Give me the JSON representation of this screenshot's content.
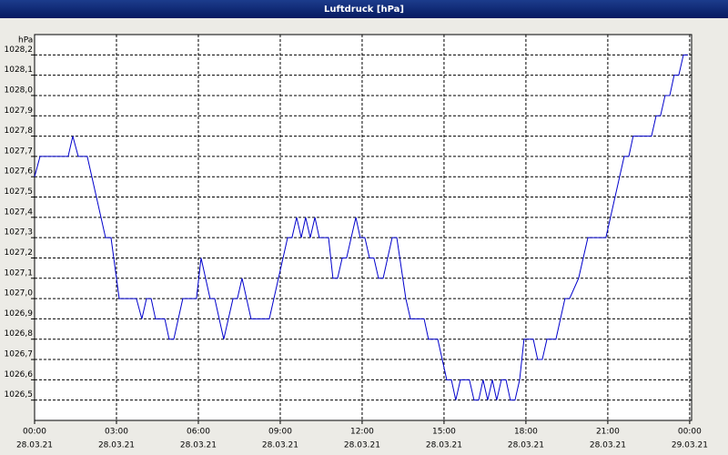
{
  "chart_data": {
    "type": "line",
    "title": "Luftdruck [hPa]",
    "y_unit": "hPa",
    "x": [
      0,
      0.2,
      1.23,
      1.4,
      1.6,
      1.93,
      2.6,
      2.8,
      3.1,
      3.73,
      3.93,
      4.1,
      4.27,
      4.43,
      4.77,
      4.93,
      5.1,
      5.43,
      5.93,
      6.1,
      6.43,
      6.6,
      6.93,
      7.27,
      7.43,
      7.6,
      7.93,
      8.6,
      9.27,
      9.43,
      9.6,
      9.77,
      9.93,
      10.1,
      10.27,
      10.43,
      10.77,
      10.93,
      11.1,
      11.27,
      11.43,
      11.77,
      11.93,
      12.1,
      12.27,
      12.43,
      12.6,
      12.77,
      13.1,
      13.27,
      13.6,
      13.77,
      14.27,
      14.43,
      14.77,
      15.1,
      15.27,
      15.43,
      15.6,
      15.93,
      16.1,
      16.27,
      16.43,
      16.6,
      16.77,
      16.93,
      17.1,
      17.27,
      17.43,
      17.6,
      17.77,
      17.93,
      18.27,
      18.43,
      18.6,
      18.77,
      19.1,
      19.43,
      19.6,
      19.93,
      20.27,
      20.43,
      20.93,
      21.6,
      21.77,
      21.93,
      22.6,
      22.77,
      22.93,
      23.1,
      23.27,
      23.43,
      23.6,
      23.77,
      23.93
    ],
    "values": [
      1027.6,
      1027.7,
      1027.7,
      1027.8,
      1027.7,
      1027.7,
      1027.3,
      1027.3,
      1027.0,
      1027.0,
      1026.9,
      1027.0,
      1027.0,
      1026.9,
      1026.9,
      1026.8,
      1026.8,
      1027.0,
      1027.0,
      1027.2,
      1027.0,
      1027.0,
      1026.8,
      1027.0,
      1027.0,
      1027.1,
      1026.9,
      1026.9,
      1027.3,
      1027.3,
      1027.4,
      1027.3,
      1027.4,
      1027.3,
      1027.4,
      1027.3,
      1027.3,
      1027.1,
      1027.1,
      1027.2,
      1027.2,
      1027.4,
      1027.3,
      1027.3,
      1027.2,
      1027.2,
      1027.1,
      1027.1,
      1027.3,
      1027.3,
      1027.0,
      1026.9,
      1026.9,
      1026.8,
      1026.8,
      1026.6,
      1026.6,
      1026.5,
      1026.6,
      1026.6,
      1026.5,
      1026.5,
      1026.6,
      1026.5,
      1026.6,
      1026.5,
      1026.6,
      1026.6,
      1026.5,
      1026.5,
      1026.6,
      1026.8,
      1026.8,
      1026.7,
      1026.7,
      1026.8,
      1026.8,
      1027.0,
      1027.0,
      1027.1,
      1027.3,
      1027.3,
      1027.3,
      1027.7,
      1027.7,
      1027.8,
      1027.8,
      1027.9,
      1027.9,
      1028.0,
      1028.0,
      1028.1,
      1028.1,
      1028.2,
      1028.2
    ],
    "color": "#0000cc",
    "xlim": [
      0,
      24.07
    ],
    "ylim": [
      1026.4,
      1028.3
    ],
    "xticks": [
      {
        "value": 0,
        "label": "00:00",
        "date": "28.03.21"
      },
      {
        "value": 3,
        "label": "03:00",
        "date": "28.03.21"
      },
      {
        "value": 6,
        "label": "06:00",
        "date": "28.03.21"
      },
      {
        "value": 9,
        "label": "09:00",
        "date": "28.03.21"
      },
      {
        "value": 12,
        "label": "12:00",
        "date": "28.03.21"
      },
      {
        "value": 15,
        "label": "15:00",
        "date": "28.03.21"
      },
      {
        "value": 18,
        "label": "18:00",
        "date": "28.03.21"
      },
      {
        "value": 21,
        "label": "21:00",
        "date": "28.03.21"
      },
      {
        "value": 24,
        "label": "00:00",
        "date": "29.03.21"
      }
    ],
    "yticks": [
      {
        "value": 1026.5,
        "label": "1026,5"
      },
      {
        "value": 1026.6,
        "label": "1026,6"
      },
      {
        "value": 1026.7,
        "label": "1026,7"
      },
      {
        "value": 1026.8,
        "label": "1026,8"
      },
      {
        "value": 1026.9,
        "label": "1026,9"
      },
      {
        "value": 1027.0,
        "label": "1027,0"
      },
      {
        "value": 1027.1,
        "label": "1027,1"
      },
      {
        "value": 1027.2,
        "label": "1027,2"
      },
      {
        "value": 1027.3,
        "label": "1027,3"
      },
      {
        "value": 1027.4,
        "label": "1027,4"
      },
      {
        "value": 1027.5,
        "label": "1027,5"
      },
      {
        "value": 1027.6,
        "label": "1027,6"
      },
      {
        "value": 1027.7,
        "label": "1027,7"
      },
      {
        "value": 1027.8,
        "label": "1027,8"
      },
      {
        "value": 1027.9,
        "label": "1027,9"
      },
      {
        "value": 1028.0,
        "label": "1028,0"
      },
      {
        "value": 1028.1,
        "label": "1028,1"
      },
      {
        "value": 1028.2,
        "label": "1028,2"
      }
    ],
    "grid": true
  }
}
